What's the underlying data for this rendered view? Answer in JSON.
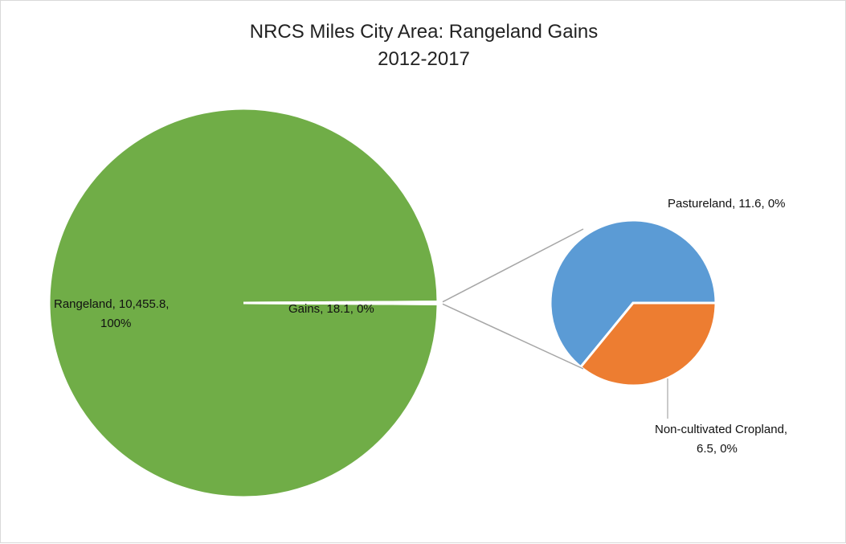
{
  "chart_data": {
    "type": "pie",
    "subtype": "pie-of-pie",
    "title": "NRCS Miles City Area: Rangeland Gains",
    "subtitle": "2012-2017",
    "main_pie": {
      "slices": [
        {
          "name": "Rangeland",
          "value": 10455.8,
          "value_label": "10,455.8",
          "percent_label": "100%",
          "color": "#70ad47"
        },
        {
          "name": "Gains",
          "value": 18.1,
          "value_label": "18.1",
          "percent_label": "0%",
          "color": "#70ad47"
        }
      ]
    },
    "secondary_pie": {
      "slices": [
        {
          "name": "Pastureland",
          "value": 11.6,
          "value_label": "11.6",
          "percent_label": "0%",
          "color": "#5b9bd5"
        },
        {
          "name": "Non-cultivated Cropland",
          "value": 6.5,
          "value_label": "6.5",
          "percent_label": "0%",
          "color": "#ed7d31"
        }
      ]
    },
    "legend": "none",
    "connector_color": "#a6a6a6"
  }
}
